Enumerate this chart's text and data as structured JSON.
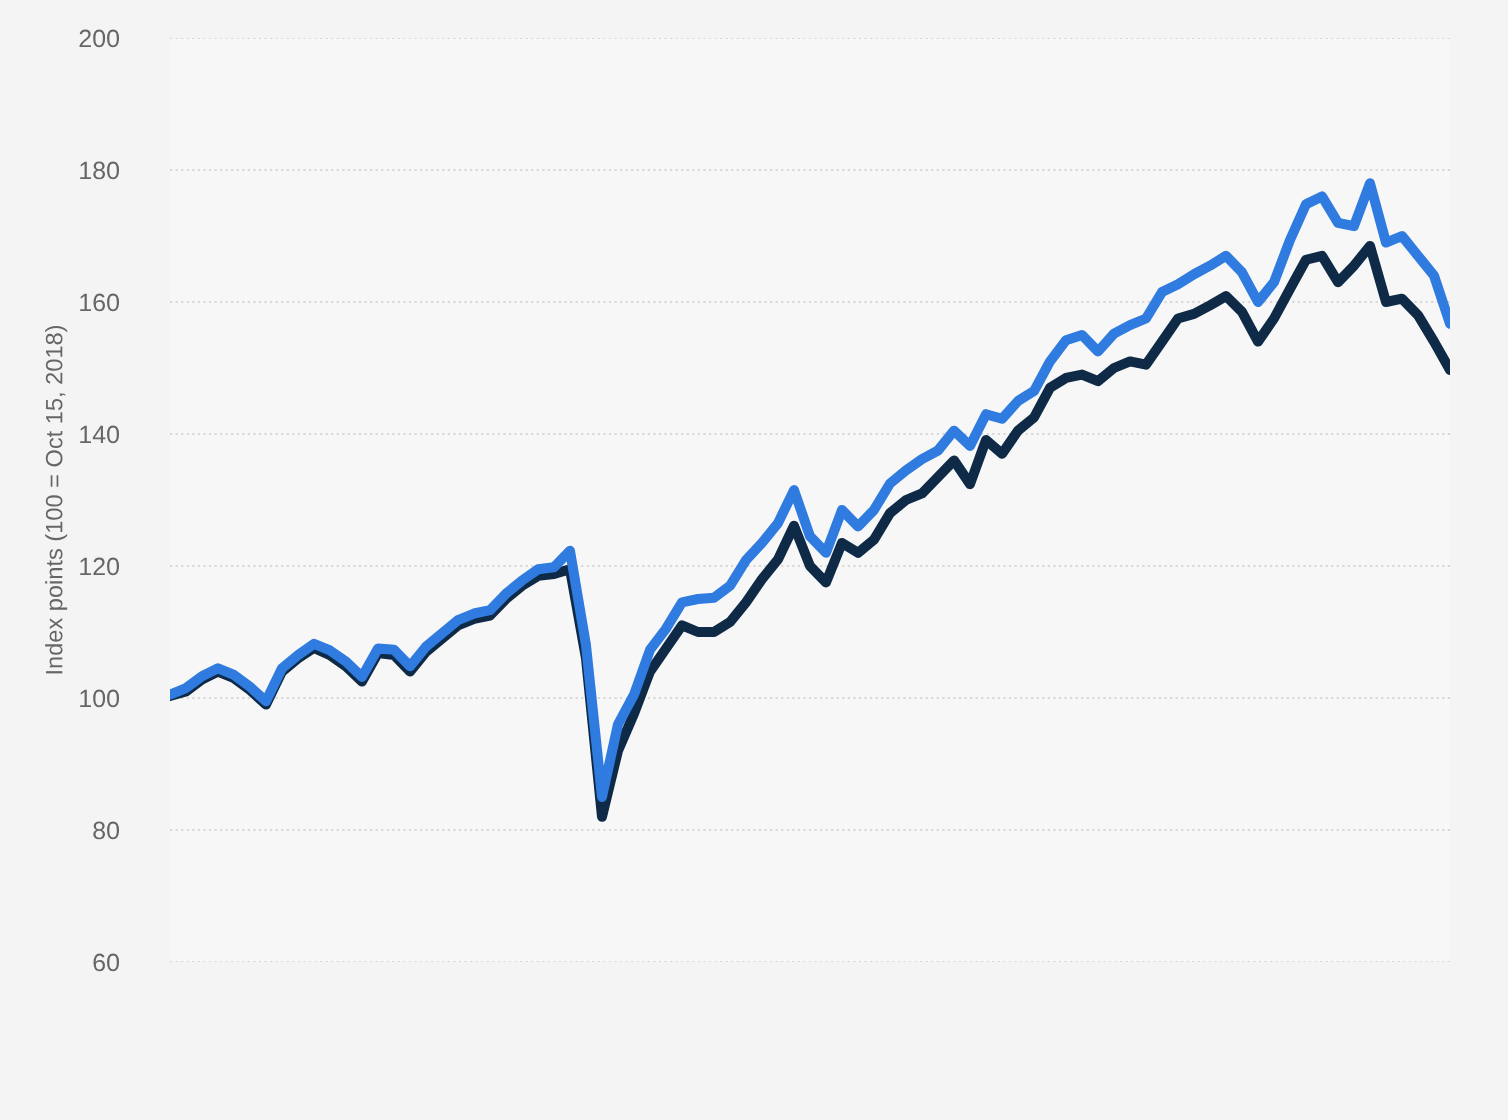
{
  "chart_data": {
    "type": "line",
    "ylabel": "Index points (100 = Oct 15, 2018)",
    "categories": [
      null,
      null,
      null,
      null,
      null,
      null,
      null,
      null,
      null,
      null,
      null,
      null,
      null,
      null,
      null,
      null,
      null,
      null,
      null,
      null,
      null,
      null,
      null,
      null,
      null,
      null,
      null,
      null,
      null,
      null,
      null,
      null,
      null,
      null,
      null,
      null,
      null,
      null,
      null,
      null,
      null,
      null,
      null,
      null,
      null,
      null,
      null,
      null,
      null,
      null,
      null,
      null,
      null,
      null,
      null,
      null,
      null,
      null,
      null,
      null,
      null,
      null,
      null,
      null,
      null,
      null,
      null,
      null,
      null,
      null,
      null,
      null,
      null,
      null,
      null,
      null,
      null,
      null,
      null,
      null,
      null
    ],
    "series": [
      {
        "color": "#2f7bdf",
        "values": [
          100.5,
          101.5,
          103.3,
          104.5,
          103.5,
          101.7,
          99.5,
          104.5,
          106.5,
          108.2,
          107.2,
          105.5,
          103.2,
          107.5,
          107.3,
          104.8,
          107.8,
          109.8,
          111.8,
          112.8,
          113.3,
          115.8,
          117.8,
          119.5,
          119.8,
          122.3,
          108,
          85,
          96,
          100.5,
          107.3,
          110.5,
          114.5,
          115,
          115.2,
          117,
          120.9,
          123.5,
          126.5,
          131.5,
          124.5,
          122,
          128.5,
          126,
          128.5,
          132.5,
          134.5,
          136.2,
          137.5,
          140.5,
          138.2,
          143,
          142.3,
          145,
          146.5,
          151,
          154.2,
          155,
          152.5,
          155.2,
          156.5,
          157.5,
          161.5,
          162.7,
          164.2,
          165.5,
          167,
          164.5,
          160,
          163,
          169.4,
          174.8,
          176,
          172,
          171.5,
          178,
          169,
          170,
          167,
          164,
          156.7
        ]
      },
      {
        "color": "#0f2a47",
        "values": [
          100.3,
          101,
          102.8,
          104,
          103,
          101.2,
          99,
          104,
          106,
          107.6,
          106.5,
          104.8,
          102.5,
          106.8,
          106.5,
          104,
          107,
          109,
          111,
          112,
          112.5,
          115,
          117,
          118.5,
          118.8,
          119.5,
          106,
          82,
          92,
          97.6,
          104,
          107.5,
          111,
          110,
          110,
          111.5,
          114.5,
          118,
          121,
          126.1,
          120,
          117.5,
          123.5,
          122,
          124,
          128,
          130,
          131,
          133.5,
          136,
          132.4,
          139.1,
          137,
          140.5,
          142.5,
          147,
          148.5,
          149,
          148,
          150,
          151,
          150.5,
          154,
          157.5,
          158.2,
          159.5,
          160.9,
          158.5,
          154,
          157.5,
          162,
          166.4,
          167,
          163,
          165.5,
          168.5,
          160,
          160.5,
          158,
          154,
          149.7
        ]
      }
    ],
    "ylim": [
      60,
      200
    ],
    "yticks": [
      60,
      80,
      100,
      120,
      140,
      160,
      180,
      200
    ],
    "grid": "y",
    "legend": false,
    "tick_labels": "y",
    "marker": "none",
    "line_style": "solid"
  }
}
